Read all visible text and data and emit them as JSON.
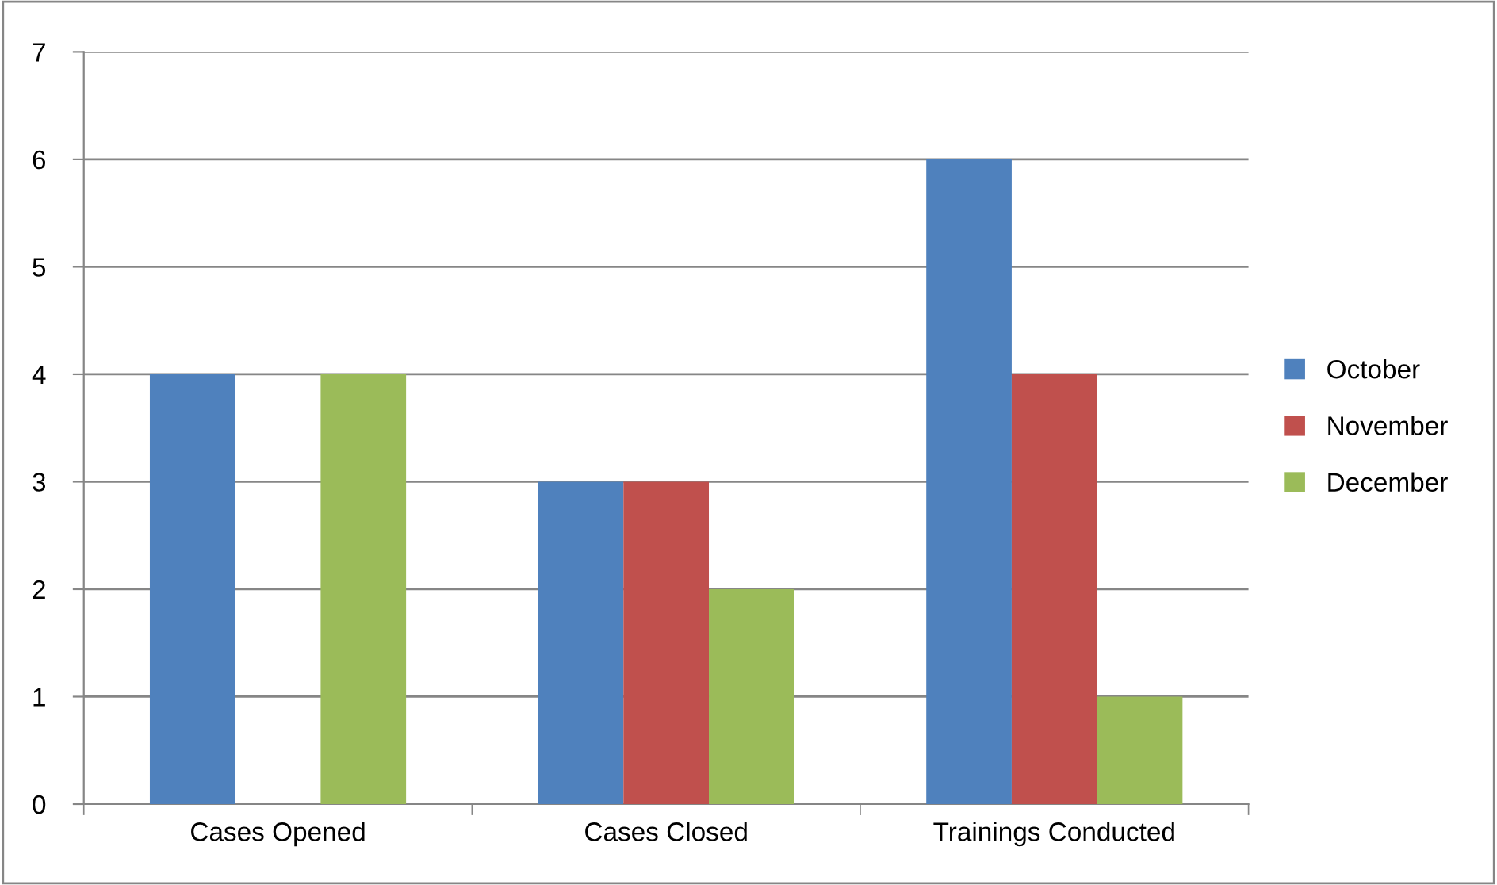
{
  "chart_data": {
    "type": "bar",
    "categories": [
      "Cases Opened",
      "Cases Closed",
      "Trainings Conducted"
    ],
    "series": [
      {
        "name": "October",
        "color": "#4f81bd",
        "values": [
          4,
          3,
          6
        ]
      },
      {
        "name": "November",
        "color": "#c0504d",
        "values": [
          0,
          3,
          4
        ]
      },
      {
        "name": "December",
        "color": "#9bbb59",
        "values": [
          4,
          2,
          1
        ]
      }
    ],
    "ylim": [
      0,
      7
    ],
    "yticks": [
      0,
      1,
      2,
      3,
      4,
      5,
      6,
      7
    ],
    "grid": "y",
    "legend": "right"
  }
}
